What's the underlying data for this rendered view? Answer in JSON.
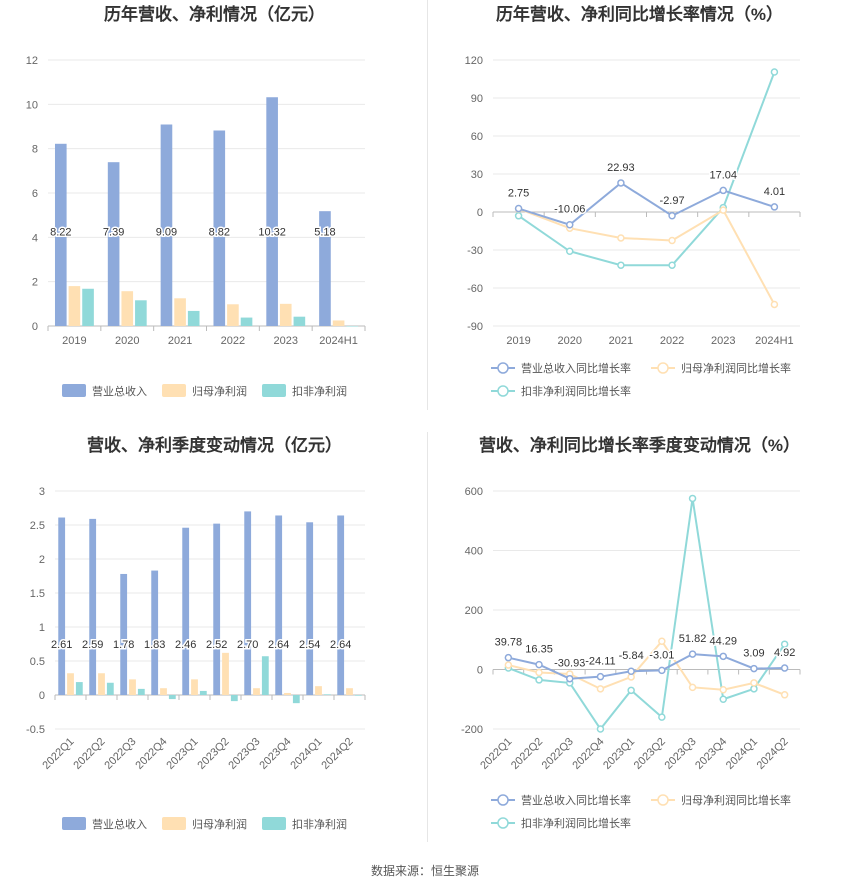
{
  "colors": {
    "rev": "#8eaadb",
    "net": "#ffe0b3",
    "ded": "#90d9d9",
    "grid": "#e9e9e9",
    "axis": "#bbbbbb"
  },
  "source": "数据来源：恒生聚源",
  "chart_data": [
    {
      "id": "annual_values",
      "type": "bar",
      "title": "历年营收、净利情况（亿元）",
      "categories": [
        "2019",
        "2020",
        "2021",
        "2022",
        "2023",
        "2024H1"
      ],
      "ylim": [
        0,
        12
      ],
      "yticks": [
        "0",
        "2",
        "4",
        "6",
        "8",
        "10",
        "12"
      ],
      "series": [
        {
          "name": "营业总收入",
          "color": "rev",
          "values": [
            8.22,
            7.39,
            9.09,
            8.82,
            10.32,
            5.18
          ],
          "labels": [
            "8.22",
            "7.39",
            "9.09",
            "8.82",
            "10.32",
            "5.18"
          ]
        },
        {
          "name": "归母净利润",
          "color": "net",
          "values": [
            1.8,
            1.57,
            1.25,
            0.98,
            1.0,
            0.25
          ]
        },
        {
          "name": "扣非净利润",
          "color": "ded",
          "values": [
            1.68,
            1.16,
            0.68,
            0.38,
            0.42,
            0.0
          ]
        }
      ]
    },
    {
      "id": "annual_growth",
      "type": "line",
      "title": "历年营收、净利同比增长率情况（%）",
      "categories": [
        "2019",
        "2020",
        "2021",
        "2022",
        "2023",
        "2024H1"
      ],
      "ylim": [
        -90,
        120
      ],
      "yticks": [
        "-90",
        "-60",
        "-30",
        "0",
        "30",
        "60",
        "90",
        "120"
      ],
      "series": [
        {
          "name": "营业总收入同比增长率",
          "color": "rev",
          "values": [
            2.75,
            -10.06,
            22.93,
            -2.97,
            17.04,
            4.01
          ],
          "labels": [
            "2.75",
            "-10.06",
            "22.93",
            "-2.97",
            "17.04",
            "4.01"
          ]
        },
        {
          "name": "归母净利润同比增长率",
          "color": "net",
          "values": [
            2.5,
            -12.8,
            -20.5,
            -22.5,
            1.5,
            -73.0
          ]
        },
        {
          "name": "扣非净利润同比增长率",
          "color": "ded",
          "values": [
            -3.0,
            -31.0,
            -42.0,
            -42.0,
            3.5,
            110.5
          ]
        }
      ]
    },
    {
      "id": "quarterly_values",
      "type": "bar",
      "title": "营收、净利季度变动情况（亿元）",
      "categories": [
        "2022Q1",
        "2022Q2",
        "2022Q3",
        "2022Q4",
        "2023Q1",
        "2023Q2",
        "2023Q3",
        "2023Q4",
        "2024Q1",
        "2024Q2"
      ],
      "ylim": [
        -0.5,
        3
      ],
      "yticks": [
        "-0.5",
        "0",
        "0.5",
        "1",
        "1.5",
        "2",
        "2.5",
        "3"
      ],
      "series": [
        {
          "name": "营业总收入",
          "color": "rev",
          "values": [
            2.61,
            2.59,
            1.78,
            1.83,
            2.46,
            2.52,
            2.7,
            2.64,
            2.54,
            2.64
          ],
          "labels": [
            "2.61",
            "2.59",
            "1.78",
            "1.83",
            "2.46",
            "2.52",
            "2.70",
            "2.64",
            "2.54",
            "2.64"
          ]
        },
        {
          "name": "归母净利润",
          "color": "net",
          "values": [
            0.32,
            0.32,
            0.23,
            0.1,
            0.23,
            0.62,
            0.1,
            0.03,
            0.13,
            0.1
          ]
        },
        {
          "name": "扣非净利润",
          "color": "ded",
          "values": [
            0.19,
            0.18,
            0.09,
            -0.06,
            0.06,
            -0.09,
            0.57,
            -0.12,
            0.01,
            -0.01
          ]
        }
      ]
    },
    {
      "id": "quarterly_growth",
      "type": "line",
      "title": "营收、净利同比增长率季度变动情况（%）",
      "categories": [
        "2022Q1",
        "2022Q2",
        "2022Q3",
        "2022Q4",
        "2023Q1",
        "2023Q2",
        "2023Q3",
        "2023Q4",
        "2024Q1",
        "2024Q2"
      ],
      "ylim": [
        -200,
        600
      ],
      "yticks": [
        "-200",
        "0",
        "200",
        "400",
        "600"
      ],
      "series": [
        {
          "name": "营业总收入同比增长率",
          "color": "rev",
          "values": [
            39.78,
            16.35,
            -30.93,
            -24.11,
            -5.84,
            -3.01,
            51.82,
            44.29,
            3.09,
            4.92
          ],
          "labels": [
            "39.78",
            "16.35",
            "-30.93",
            "-24.11",
            "-5.84",
            "-3.01",
            "51.82",
            "44.29",
            "3.09",
            "4.92"
          ]
        },
        {
          "name": "归母净利润同比增长率",
          "color": "net",
          "values": [
            15,
            -10,
            -15,
            -65,
            -25,
            95,
            -60,
            -68,
            -45,
            -85
          ]
        },
        {
          "name": "扣非净利润同比增长率",
          "color": "ded",
          "values": [
            5,
            -35,
            -45,
            -200,
            -70,
            -160,
            575,
            -100,
            -65,
            85
          ]
        }
      ]
    }
  ]
}
